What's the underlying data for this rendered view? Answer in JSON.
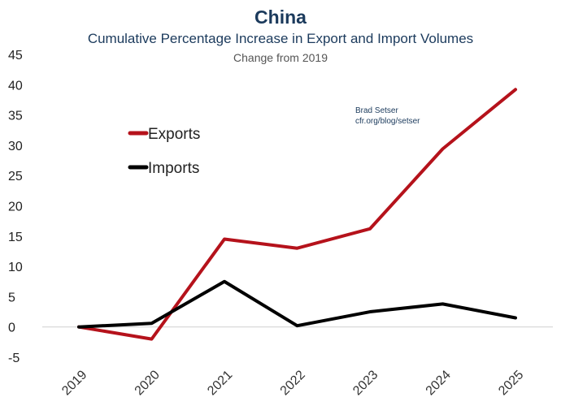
{
  "chart_data": {
    "type": "line",
    "title": "China",
    "subtitle": "Cumulative Percentage Increase in Export and Import Volumes",
    "subsubtitle": "Change from 2019",
    "x": [
      "2019",
      "2020",
      "2021",
      "2022",
      "2023",
      "2024",
      "2025"
    ],
    "series": [
      {
        "name": "Exports",
        "color": "#b5121b",
        "values": [
          0,
          -2,
          14.5,
          13,
          16.2,
          29.4,
          39.2
        ]
      },
      {
        "name": "Imports",
        "color": "#000000",
        "values": [
          0,
          0.6,
          7.5,
          0.2,
          2.5,
          3.8,
          1.5
        ]
      }
    ],
    "ylim": [
      -5,
      45
    ],
    "yticks": [
      -5,
      0,
      5,
      10,
      15,
      20,
      25,
      30,
      35,
      40,
      45
    ],
    "xlabel": "",
    "ylabel": "",
    "legend": "upper-left",
    "grid": false,
    "annotation": [
      "Brad Setser",
      "cfr.org/blog/setser"
    ]
  }
}
